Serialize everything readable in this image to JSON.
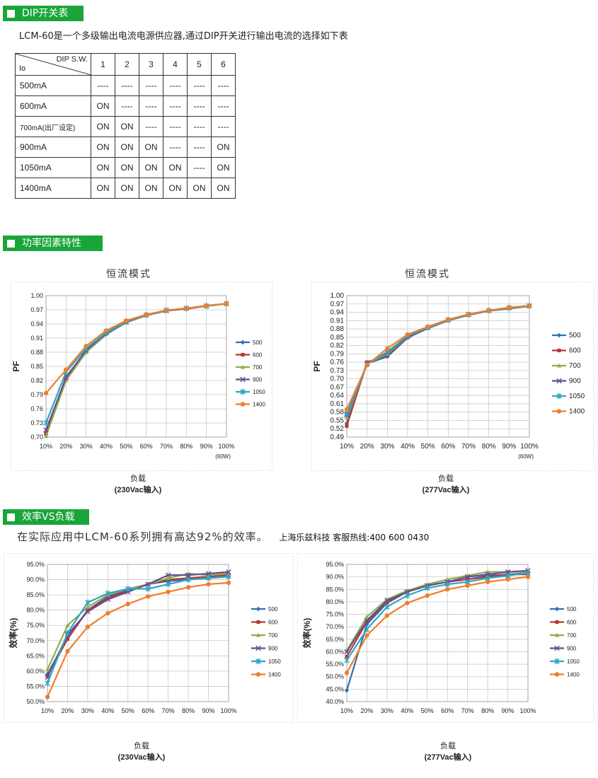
{
  "sections": {
    "dip": "DIP开关表",
    "pf": "功率因素特性",
    "eff": "效率VS负载"
  },
  "intro_dip": "LCM-60是一个多级输出电流电源供应器,通过DIP开关进行输出电流的选择如下表",
  "dip_table": {
    "header_sw": "DIP S.W.",
    "header_io": "Io",
    "switches": [
      "1",
      "2",
      "3",
      "4",
      "5",
      "6"
    ],
    "rows": [
      {
        "io": "500mA",
        "v": [
          "----",
          "----",
          "----",
          "----",
          "----",
          "----"
        ]
      },
      {
        "io": "600mA",
        "v": [
          "ON",
          "----",
          "----",
          "----",
          "----",
          "----"
        ]
      },
      {
        "io": "700mA(出厂设定)",
        "v": [
          "ON",
          "ON",
          "----",
          "----",
          "----",
          "----"
        ]
      },
      {
        "io": "900mA",
        "v": [
          "ON",
          "ON",
          "ON",
          "----",
          "----",
          "ON"
        ]
      },
      {
        "io": "1050mA",
        "v": [
          "ON",
          "ON",
          "ON",
          "ON",
          "----",
          "ON"
        ]
      },
      {
        "io": "1400mA",
        "v": [
          "ON",
          "ON",
          "ON",
          "ON",
          "ON",
          "ON"
        ]
      }
    ]
  },
  "intro_eff": "在实际应用中LCM-60系列拥有高达92%的效率。",
  "hotline": "上海乐兹科技 客服热线:400 600 0430",
  "series_colors": [
    "#2f6fb0",
    "#b5373a",
    "#8db049",
    "#6a4a96",
    "#2fa6c4",
    "#ef7f2c"
  ],
  "chart_data": [
    {
      "type": "line",
      "title": "恒流模式",
      "ylabel": "PF",
      "xlabel": "负载",
      "caption": "(230Vac输入)",
      "note": "(60W)",
      "categories": [
        "10%",
        "20%",
        "30%",
        "40%",
        "50%",
        "60%",
        "70%",
        "80%",
        "90%",
        "100%"
      ],
      "yticks": [
        "0.70",
        "0.73",
        "0.76",
        "0.79",
        "0.82",
        "0.85",
        "0.88",
        "0.91",
        "0.94",
        "0.97",
        "1.00"
      ],
      "ylim": [
        0.7,
        1.0
      ],
      "series": [
        {
          "name": "500",
          "values": [
            0.705,
            0.825,
            0.88,
            0.918,
            0.943,
            0.958,
            0.968,
            0.972,
            0.978,
            0.983
          ]
        },
        {
          "name": "600",
          "values": [
            0.708,
            0.828,
            0.882,
            0.92,
            0.944,
            0.958,
            0.968,
            0.972,
            0.978,
            0.983
          ]
        },
        {
          "name": "700",
          "values": [
            0.702,
            0.82,
            0.88,
            0.92,
            0.943,
            0.958,
            0.968,
            0.973,
            0.978,
            0.983
          ]
        },
        {
          "name": "900",
          "values": [
            0.715,
            0.826,
            0.884,
            0.921,
            0.944,
            0.959,
            0.968,
            0.973,
            0.978,
            0.983
          ]
        },
        {
          "name": "1050",
          "values": [
            0.73,
            0.838,
            0.888,
            0.922,
            0.945,
            0.959,
            0.969,
            0.973,
            0.978,
            0.983
          ]
        },
        {
          "name": "1400",
          "values": [
            0.793,
            0.843,
            0.893,
            0.926,
            0.947,
            0.96,
            0.969,
            0.973,
            0.979,
            0.983
          ]
        }
      ]
    },
    {
      "type": "line",
      "title": "恒流模式",
      "ylabel": "PF",
      "xlabel": "负载",
      "caption": "(277Vac输入)",
      "note": "(60W)",
      "categories": [
        "10%",
        "20%",
        "30%",
        "40%",
        "50%",
        "60%",
        "70%",
        "80%",
        "90%",
        "100%"
      ],
      "yticks": [
        "0.49",
        "0.52",
        "0.55",
        "0.58",
        "0.61",
        "0.64",
        "0.67",
        "0.70",
        "0.73",
        "0.76",
        "0.79",
        "0.82",
        "0.85",
        "0.88",
        "0.91",
        "0.94",
        "0.97",
        "1.00"
      ],
      "ylim": [
        0.49,
        1.0
      ],
      "series": [
        {
          "name": "500",
          "values": [
            0.54,
            0.755,
            0.78,
            0.848,
            0.882,
            0.91,
            0.93,
            0.945,
            0.953,
            0.962
          ]
        },
        {
          "name": "600",
          "values": [
            0.53,
            0.76,
            0.785,
            0.85,
            0.884,
            0.911,
            0.931,
            0.946,
            0.957,
            0.963
          ]
        },
        {
          "name": "700",
          "values": [
            0.56,
            0.755,
            0.79,
            0.852,
            0.884,
            0.911,
            0.931,
            0.946,
            0.955,
            0.963
          ]
        },
        {
          "name": "900",
          "values": [
            0.57,
            0.755,
            0.795,
            0.853,
            0.885,
            0.912,
            0.931,
            0.946,
            0.956,
            0.963
          ]
        },
        {
          "name": "1050",
          "values": [
            0.575,
            0.752,
            0.798,
            0.855,
            0.886,
            0.912,
            0.932,
            0.946,
            0.956,
            0.963
          ]
        },
        {
          "name": "1400",
          "values": [
            0.59,
            0.75,
            0.81,
            0.86,
            0.888,
            0.914,
            0.933,
            0.947,
            0.957,
            0.964
          ]
        }
      ]
    },
    {
      "type": "line",
      "ylabel": "效率(%)",
      "xlabel": "负载",
      "caption": "(230Vac输入)",
      "categories": [
        "10%",
        "20%",
        "30%",
        "40%",
        "50%",
        "60%",
        "70%",
        "80%",
        "90%",
        "100%"
      ],
      "yticks": [
        "50.0%",
        "55.0%",
        "60.0%",
        "65.0%",
        "70.0%",
        "75.0%",
        "80.0%",
        "85.0%",
        "90.0%",
        "95.0%"
      ],
      "ylim": [
        50,
        95
      ],
      "series": [
        {
          "name": "500",
          "values": [
            59.0,
            71.0,
            80.0,
            84.5,
            86.5,
            88.5,
            89.5,
            90.0,
            90.5,
            91.0
          ]
        },
        {
          "name": "600",
          "values": [
            58.5,
            70.5,
            80.0,
            84.0,
            86.5,
            88.5,
            90.0,
            90.5,
            91.0,
            91.5
          ]
        },
        {
          "name": "700",
          "values": [
            60.5,
            75.0,
            81.0,
            85.0,
            87.0,
            88.5,
            90.5,
            92.0,
            91.5,
            92.0
          ]
        },
        {
          "name": "900",
          "values": [
            58.0,
            72.0,
            79.5,
            83.5,
            86.0,
            88.5,
            91.5,
            91.5,
            92.0,
            92.5
          ]
        },
        {
          "name": "1050",
          "values": [
            56.0,
            72.5,
            82.5,
            85.5,
            87.0,
            87.0,
            88.5,
            90.0,
            90.5,
            91.0
          ]
        },
        {
          "name": "1400",
          "values": [
            51.5,
            66.5,
            74.5,
            79.0,
            82.0,
            84.5,
            86.0,
            87.5,
            88.5,
            89.0
          ]
        }
      ]
    },
    {
      "type": "line",
      "ylabel": "效率(%)",
      "xlabel": "负载",
      "caption": "(277Vac输入)",
      "categories": [
        "10%",
        "20%",
        "30%",
        "40%",
        "50%",
        "60%",
        "70%",
        "80%",
        "90%",
        "100%"
      ],
      "yticks": [
        "40.0%",
        "45.0%",
        "50.0%",
        "55.0%",
        "60.0%",
        "65.0%",
        "70.0%",
        "75.0%",
        "80.0%",
        "85.0%",
        "90.0%",
        "95.0%"
      ],
      "ylim": [
        40,
        95
      ],
      "series": [
        {
          "name": "500",
          "values": [
            44.5,
            71.0,
            79.5,
            84.0,
            86.5,
            88.0,
            89.0,
            90.5,
            91.0,
            91.5
          ]
        },
        {
          "name": "600",
          "values": [
            58.0,
            72.0,
            80.0,
            84.0,
            86.5,
            88.0,
            89.0,
            90.0,
            91.0,
            91.0
          ]
        },
        {
          "name": "700",
          "values": [
            60.5,
            74.0,
            81.0,
            84.5,
            87.0,
            89.0,
            90.5,
            92.0,
            92.0,
            92.0
          ]
        },
        {
          "name": "900",
          "values": [
            60.0,
            72.5,
            80.5,
            84.0,
            86.5,
            88.0,
            90.0,
            91.0,
            92.0,
            92.5
          ]
        },
        {
          "name": "1050",
          "values": [
            56.5,
            69.0,
            78.0,
            82.5,
            85.5,
            87.0,
            88.0,
            89.5,
            90.5,
            91.5
          ]
        },
        {
          "name": "1400",
          "values": [
            51.5,
            66.5,
            74.5,
            79.5,
            82.5,
            85.0,
            86.5,
            88.0,
            89.0,
            90.0
          ]
        }
      ]
    }
  ]
}
